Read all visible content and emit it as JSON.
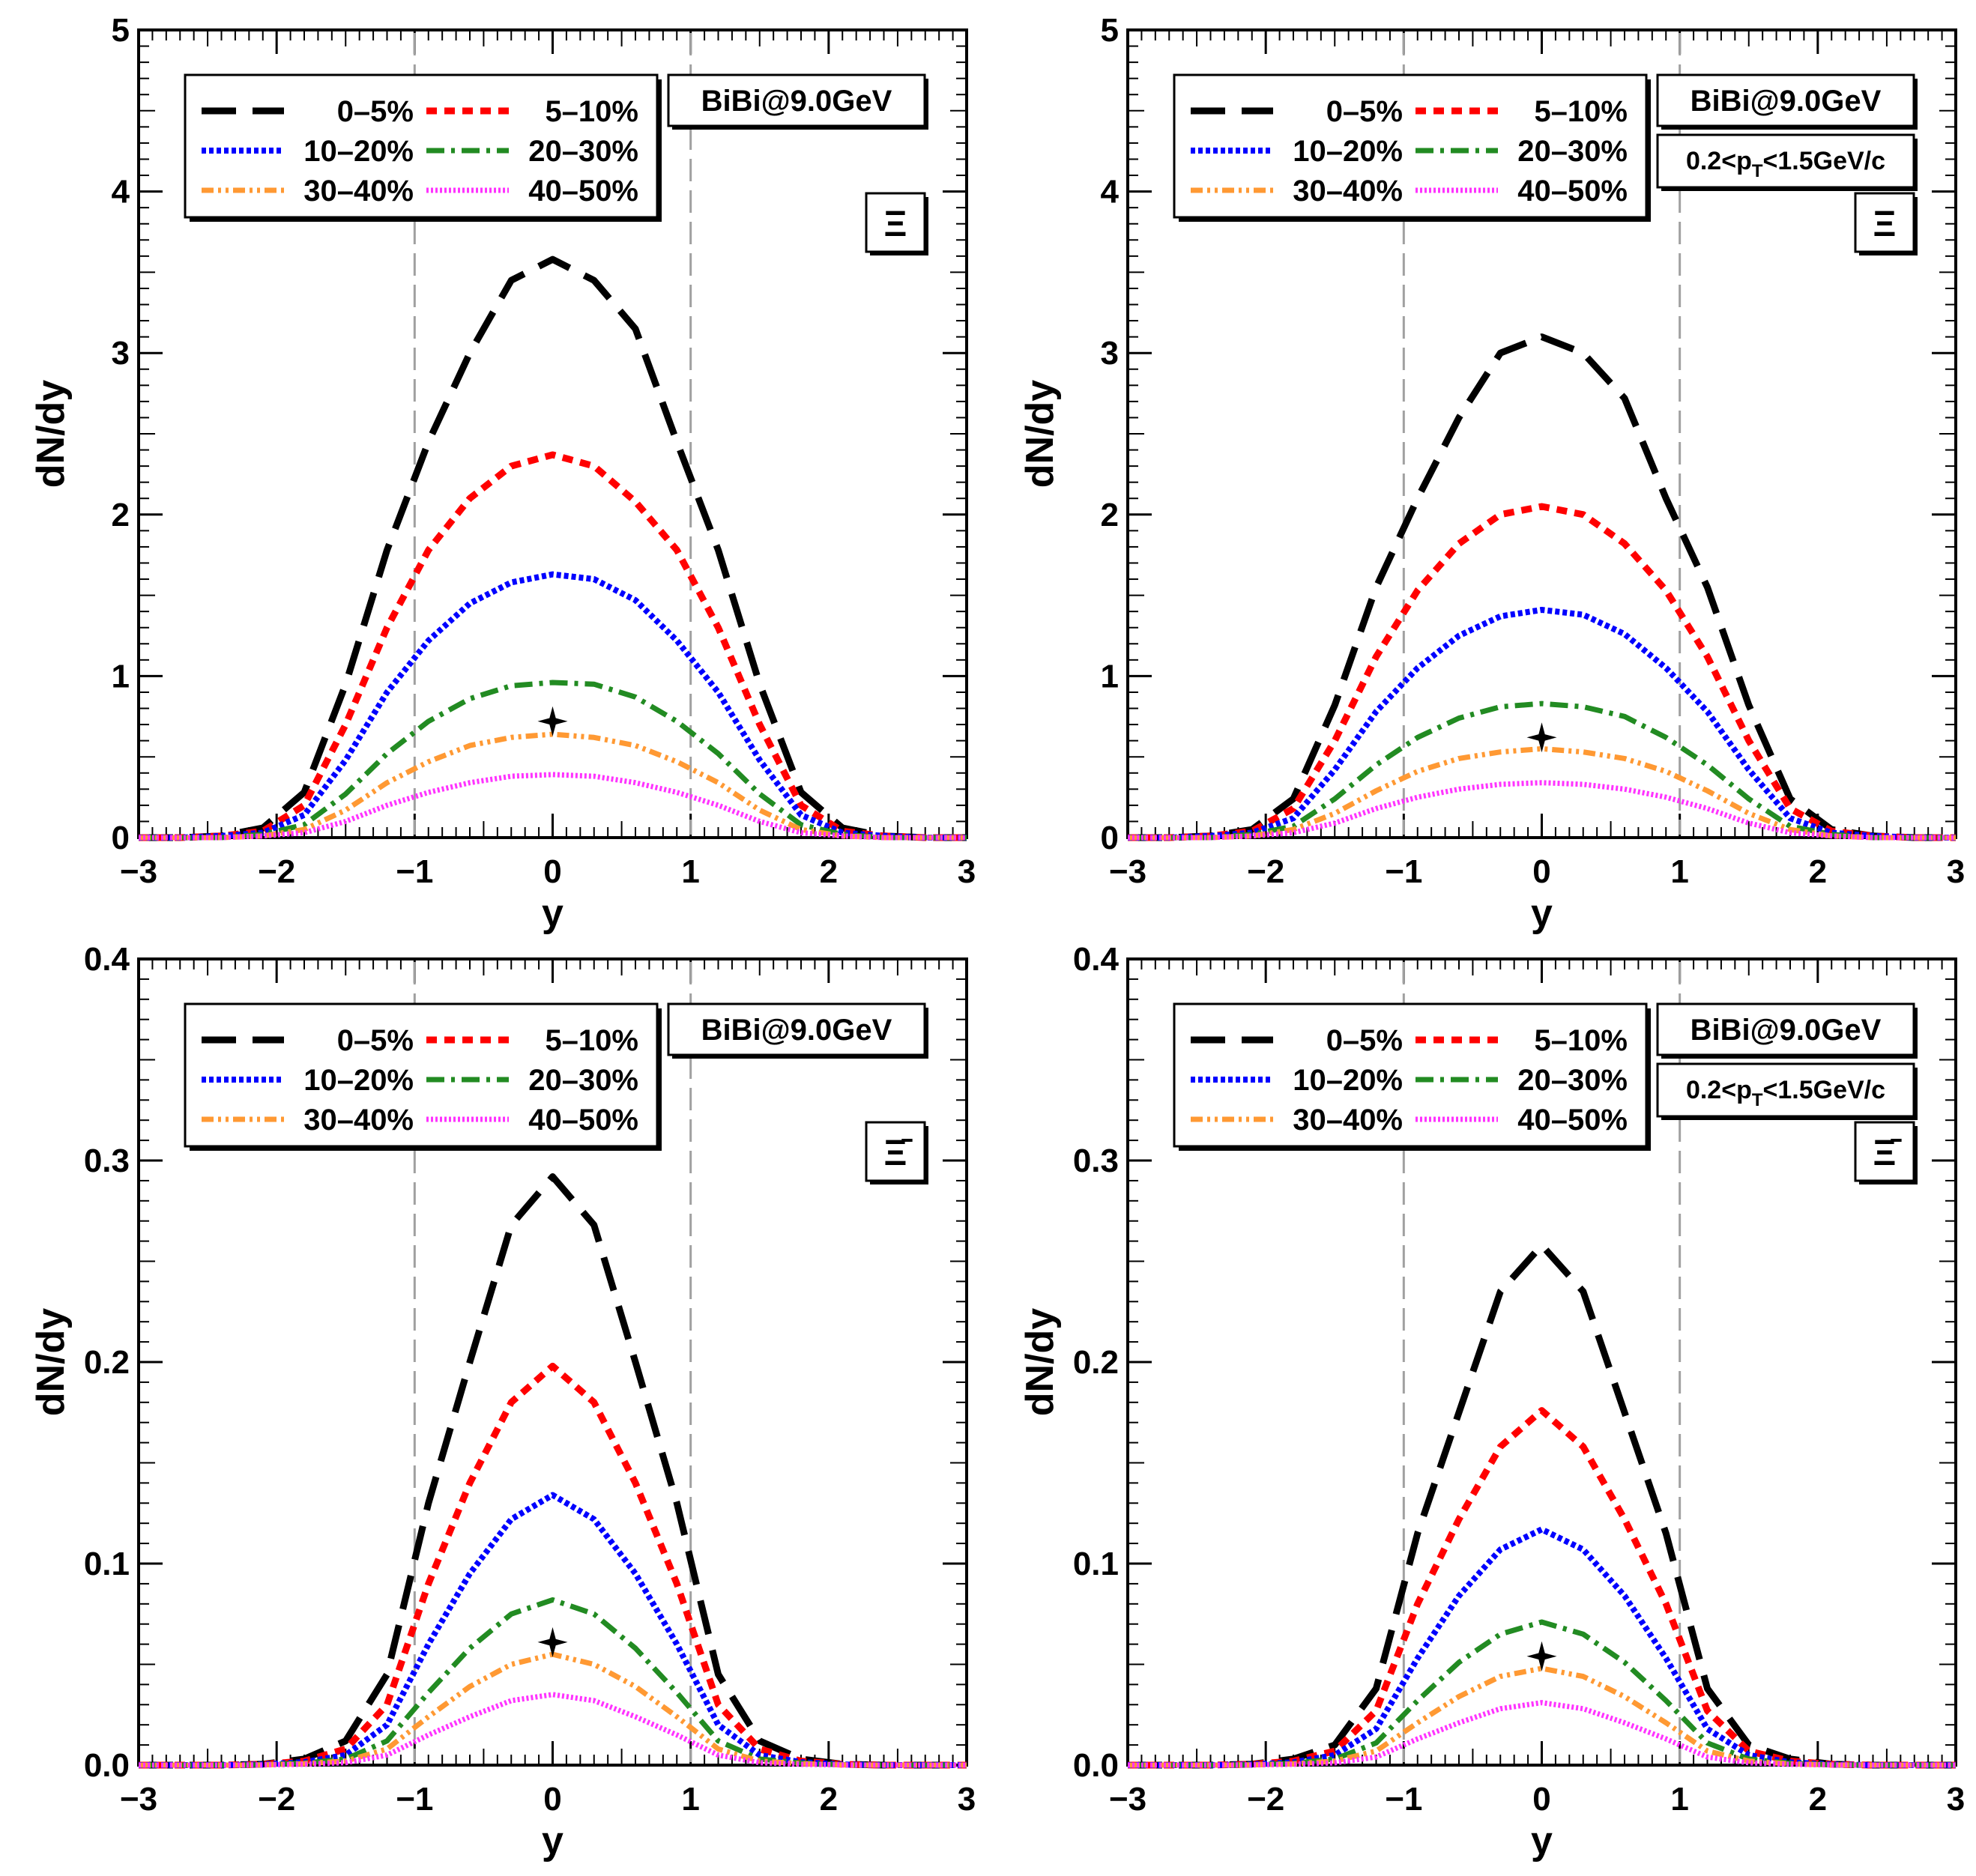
{
  "colors": {
    "0-5%": "#000000",
    "5-10%": "#ff0000",
    "10-20%": "#0000ff",
    "20-30%": "#228b22",
    "30-40%": "#ff9933",
    "40-50%": "#ff33ff",
    "ref_lines": "#a0a0a0"
  },
  "chart_data": [
    {
      "type": "line",
      "panel": "top-left",
      "xlabel": "y",
      "ylabel": "dN/dy",
      "xlim": [
        -3,
        3
      ],
      "ylim": [
        0,
        5
      ],
      "xticks": [
        "−3",
        "−2",
        "−1",
        "0",
        "1",
        "2",
        "3"
      ],
      "yticks": [
        "0",
        "1",
        "2",
        "3",
        "4",
        "5"
      ],
      "legend_position": "top-left",
      "collision_label": "BiBi@9.0GeV",
      "pt_label": "",
      "particle_label": "Ξ",
      "ref_lines_x": [
        -1,
        1
      ],
      "marker": {
        "shape": "star",
        "x": 0,
        "y": 0.72
      },
      "x": [
        -3.0,
        -2.7,
        -2.4,
        -2.1,
        -1.8,
        -1.5,
        -1.2,
        -0.9,
        -0.6,
        -0.3,
        0.0,
        0.3,
        0.6,
        0.9,
        1.2,
        1.5,
        1.8,
        2.1,
        2.4,
        2.7,
        3.0
      ],
      "series": [
        {
          "name": "0–5%",
          "values": [
            0,
            0,
            0.01,
            0.06,
            0.28,
            0.95,
            1.78,
            2.45,
            3.0,
            3.45,
            3.58,
            3.45,
            3.15,
            2.45,
            1.78,
            0.95,
            0.28,
            0.06,
            0.01,
            0,
            0
          ]
        },
        {
          "name": "5–10%",
          "values": [
            0,
            0,
            0.01,
            0.04,
            0.2,
            0.7,
            1.3,
            1.78,
            2.1,
            2.3,
            2.37,
            2.3,
            2.08,
            1.78,
            1.3,
            0.7,
            0.2,
            0.04,
            0.01,
            0,
            0
          ]
        },
        {
          "name": "10–20%",
          "values": [
            0,
            0,
            0.01,
            0.03,
            0.14,
            0.48,
            0.9,
            1.22,
            1.45,
            1.58,
            1.63,
            1.6,
            1.47,
            1.22,
            0.9,
            0.48,
            0.14,
            0.03,
            0.01,
            0,
            0
          ]
        },
        {
          "name": "20–30%",
          "values": [
            0,
            0,
            0.0,
            0.02,
            0.08,
            0.27,
            0.52,
            0.72,
            0.86,
            0.94,
            0.96,
            0.95,
            0.87,
            0.72,
            0.52,
            0.27,
            0.08,
            0.02,
            0.0,
            0,
            0
          ]
        },
        {
          "name": "30–40%",
          "values": [
            0,
            0,
            0.0,
            0.01,
            0.05,
            0.17,
            0.34,
            0.47,
            0.57,
            0.62,
            0.64,
            0.62,
            0.57,
            0.47,
            0.34,
            0.17,
            0.05,
            0.01,
            0.0,
            0,
            0
          ]
        },
        {
          "name": "40–50%",
          "values": [
            0,
            0,
            0.0,
            0.01,
            0.03,
            0.1,
            0.2,
            0.28,
            0.34,
            0.38,
            0.39,
            0.38,
            0.34,
            0.28,
            0.2,
            0.1,
            0.03,
            0.01,
            0.0,
            0,
            0
          ]
        }
      ]
    },
    {
      "type": "line",
      "panel": "top-right",
      "xlabel": "y",
      "ylabel": "dN/dy",
      "xlim": [
        -3,
        3
      ],
      "ylim": [
        0,
        5
      ],
      "xticks": [
        "−3",
        "−2",
        "−1",
        "0",
        "1",
        "2",
        "3"
      ],
      "yticks": [
        "0",
        "1",
        "2",
        "3",
        "4",
        "5"
      ],
      "legend_position": "top-left",
      "collision_label": "BiBi@9.0GeV",
      "pt_label": "0.2<p_T<1.5GeV/c",
      "particle_label": "Ξ",
      "ref_lines_x": [
        -1,
        1
      ],
      "marker": {
        "shape": "star",
        "x": 0,
        "y": 0.62
      },
      "x": [
        -3.0,
        -2.7,
        -2.4,
        -2.1,
        -1.8,
        -1.5,
        -1.2,
        -0.9,
        -0.6,
        -0.3,
        0.0,
        0.3,
        0.6,
        0.9,
        1.2,
        1.5,
        1.8,
        2.1,
        2.4,
        2.7,
        3.0
      ],
      "series": [
        {
          "name": "0–5%",
          "values": [
            0,
            0,
            0.01,
            0.05,
            0.24,
            0.82,
            1.55,
            2.1,
            2.6,
            3.0,
            3.1,
            3.0,
            2.72,
            2.1,
            1.55,
            0.82,
            0.24,
            0.05,
            0.01,
            0,
            0
          ]
        },
        {
          "name": "5–10%",
          "values": [
            0,
            0,
            0.01,
            0.04,
            0.18,
            0.6,
            1.12,
            1.53,
            1.82,
            2.0,
            2.05,
            2.0,
            1.82,
            1.53,
            1.12,
            0.6,
            0.18,
            0.04,
            0.01,
            0,
            0
          ]
        },
        {
          "name": "10–20%",
          "values": [
            0,
            0,
            0.01,
            0.03,
            0.12,
            0.42,
            0.78,
            1.05,
            1.25,
            1.37,
            1.41,
            1.38,
            1.26,
            1.05,
            0.78,
            0.42,
            0.12,
            0.03,
            0.01,
            0,
            0
          ]
        },
        {
          "name": "20–30%",
          "values": [
            0,
            0,
            0.0,
            0.02,
            0.07,
            0.24,
            0.45,
            0.62,
            0.74,
            0.81,
            0.83,
            0.81,
            0.75,
            0.62,
            0.45,
            0.24,
            0.07,
            0.02,
            0.0,
            0,
            0
          ]
        },
        {
          "name": "30–40%",
          "values": [
            0,
            0,
            0.0,
            0.01,
            0.05,
            0.15,
            0.29,
            0.41,
            0.49,
            0.53,
            0.55,
            0.53,
            0.49,
            0.41,
            0.29,
            0.15,
            0.05,
            0.01,
            0.0,
            0,
            0
          ]
        },
        {
          "name": "40–50%",
          "values": [
            0,
            0,
            0.0,
            0.01,
            0.03,
            0.09,
            0.18,
            0.25,
            0.3,
            0.33,
            0.34,
            0.33,
            0.3,
            0.25,
            0.18,
            0.09,
            0.03,
            0.01,
            0.0,
            0,
            0
          ]
        }
      ]
    },
    {
      "type": "line",
      "panel": "bottom-left",
      "xlabel": "y",
      "ylabel": "dN/dy",
      "xlim": [
        -3,
        3
      ],
      "ylim": [
        0,
        0.4
      ],
      "xticks": [
        "−3",
        "−2",
        "−1",
        "0",
        "1",
        "2",
        "3"
      ],
      "yticks": [
        "0.0",
        "0.1",
        "0.2",
        "0.3",
        "0.4"
      ],
      "legend_position": "top-left",
      "collision_label": "BiBi@9.0GeV",
      "pt_label": "",
      "particle_label": "Ξ̄",
      "ref_lines_x": [
        -1,
        1
      ],
      "marker": {
        "shape": "star",
        "x": 0,
        "y": 0.061
      },
      "x": [
        -3.0,
        -2.7,
        -2.4,
        -2.1,
        -1.8,
        -1.5,
        -1.2,
        -0.9,
        -0.6,
        -0.3,
        0.0,
        0.3,
        0.6,
        0.9,
        1.2,
        1.5,
        1.8,
        2.1,
        2.4,
        2.7,
        3.0
      ],
      "series": [
        {
          "name": "0–5%",
          "values": [
            0,
            0,
            0,
            0.0005,
            0.003,
            0.012,
            0.045,
            0.13,
            0.2,
            0.268,
            0.292,
            0.268,
            0.2,
            0.13,
            0.045,
            0.012,
            0.003,
            0.0005,
            0,
            0,
            0
          ]
        },
        {
          "name": "5–10%",
          "values": [
            0,
            0,
            0,
            0.0004,
            0.002,
            0.008,
            0.03,
            0.09,
            0.14,
            0.18,
            0.198,
            0.18,
            0.14,
            0.09,
            0.03,
            0.008,
            0.002,
            0.0004,
            0,
            0,
            0
          ]
        },
        {
          "name": "10–20%",
          "values": [
            0,
            0,
            0,
            0.0003,
            0.0015,
            0.005,
            0.02,
            0.06,
            0.095,
            0.122,
            0.134,
            0.122,
            0.095,
            0.06,
            0.02,
            0.005,
            0.0015,
            0.0003,
            0,
            0,
            0
          ]
        },
        {
          "name": "20–30%",
          "values": [
            0,
            0,
            0,
            0.0002,
            0.001,
            0.003,
            0.012,
            0.036,
            0.058,
            0.075,
            0.082,
            0.075,
            0.058,
            0.036,
            0.012,
            0.003,
            0.001,
            0.0002,
            0,
            0,
            0
          ]
        },
        {
          "name": "30–40%",
          "values": [
            0,
            0,
            0,
            0.0001,
            0.0007,
            0.002,
            0.008,
            0.024,
            0.039,
            0.05,
            0.055,
            0.05,
            0.039,
            0.024,
            0.008,
            0.002,
            0.0007,
            0.0001,
            0,
            0,
            0
          ]
        },
        {
          "name": "40–50%",
          "values": [
            0,
            0,
            0,
            0.0001,
            0.0004,
            0.0012,
            0.005,
            0.015,
            0.024,
            0.032,
            0.035,
            0.032,
            0.024,
            0.015,
            0.005,
            0.0012,
            0.0004,
            0.0001,
            0,
            0,
            0
          ]
        }
      ]
    },
    {
      "type": "line",
      "panel": "bottom-right",
      "xlabel": "y",
      "ylabel": "dN/dy",
      "xlim": [
        -3,
        3
      ],
      "ylim": [
        0,
        0.4
      ],
      "xticks": [
        "−3",
        "−2",
        "−1",
        "0",
        "1",
        "2",
        "3"
      ],
      "yticks": [
        "0.0",
        "0.1",
        "0.2",
        "0.3",
        "0.4"
      ],
      "legend_position": "top-left",
      "collision_label": "BiBi@9.0GeV",
      "pt_label": "0.2<p_T<1.5GeV/c",
      "particle_label": "Ξ̄",
      "ref_lines_x": [
        -1,
        1
      ],
      "marker": {
        "shape": "star",
        "x": 0,
        "y": 0.054
      },
      "x": [
        -3.0,
        -2.7,
        -2.4,
        -2.1,
        -1.8,
        -1.5,
        -1.2,
        -0.9,
        -0.6,
        -0.3,
        0.0,
        0.3,
        0.6,
        0.9,
        1.2,
        1.5,
        1.8,
        2.1,
        2.4,
        2.7,
        3.0
      ],
      "series": [
        {
          "name": "0–5%",
          "values": [
            0,
            0,
            0,
            0.0005,
            0.003,
            0.01,
            0.038,
            0.115,
            0.175,
            0.235,
            0.258,
            0.235,
            0.175,
            0.115,
            0.038,
            0.01,
            0.003,
            0.0005,
            0,
            0,
            0
          ]
        },
        {
          "name": "5–10%",
          "values": [
            0,
            0,
            0,
            0.0004,
            0.002,
            0.007,
            0.027,
            0.08,
            0.122,
            0.158,
            0.176,
            0.158,
            0.122,
            0.08,
            0.027,
            0.007,
            0.002,
            0.0004,
            0,
            0,
            0
          ]
        },
        {
          "name": "10–20%",
          "values": [
            0,
            0,
            0,
            0.0003,
            0.0014,
            0.005,
            0.018,
            0.053,
            0.084,
            0.107,
            0.117,
            0.107,
            0.084,
            0.053,
            0.018,
            0.005,
            0.0014,
            0.0003,
            0,
            0,
            0
          ]
        },
        {
          "name": "20–30%",
          "values": [
            0,
            0,
            0,
            0.0002,
            0.0009,
            0.003,
            0.011,
            0.032,
            0.051,
            0.065,
            0.071,
            0.065,
            0.051,
            0.032,
            0.011,
            0.003,
            0.0009,
            0.0002,
            0,
            0,
            0
          ]
        },
        {
          "name": "30–40%",
          "values": [
            0,
            0,
            0,
            0.0001,
            0.0006,
            0.002,
            0.007,
            0.021,
            0.034,
            0.044,
            0.048,
            0.044,
            0.034,
            0.021,
            0.007,
            0.002,
            0.0006,
            0.0001,
            0,
            0,
            0
          ]
        },
        {
          "name": "40–50%",
          "values": [
            0,
            0,
            0,
            0.0001,
            0.0004,
            0.0011,
            0.004,
            0.013,
            0.021,
            0.028,
            0.031,
            0.028,
            0.021,
            0.013,
            0.004,
            0.0011,
            0.0004,
            0.0001,
            0,
            0,
            0
          ]
        }
      ]
    }
  ]
}
